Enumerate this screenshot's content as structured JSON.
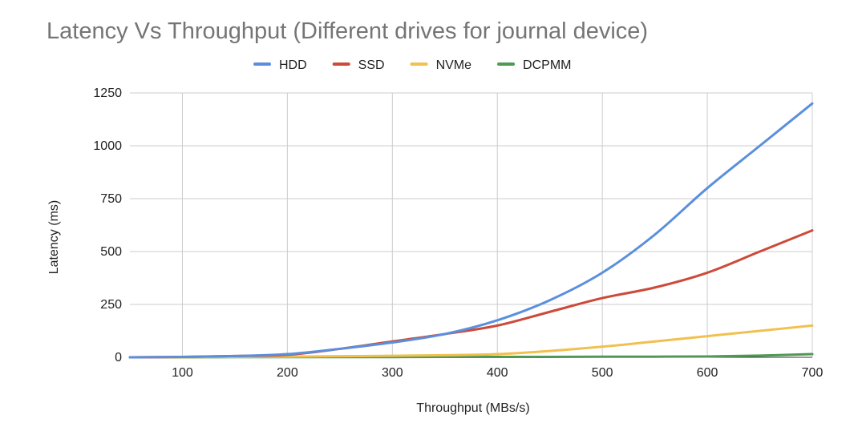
{
  "chart_data": {
    "type": "line",
    "title": "Latency Vs Throughput (Different drives for journal device)",
    "xlabel": "Throughput (MBs/s)",
    "ylabel": "Latency (ms)",
    "x": [
      50,
      100,
      150,
      200,
      250,
      300,
      350,
      400,
      450,
      500,
      550,
      600,
      650,
      700
    ],
    "xlim": [
      50,
      700
    ],
    "ylim": [
      0,
      1250
    ],
    "x_ticks": [
      100,
      200,
      300,
      400,
      500,
      600,
      700
    ],
    "y_ticks": [
      0,
      250,
      500,
      750,
      1000,
      1250
    ],
    "grid": true,
    "legend_position": "top",
    "series": [
      {
        "name": "HDD",
        "color": "#5B8FDD",
        "values": [
          0,
          2,
          6,
          15,
          40,
          70,
          110,
          175,
          270,
          400,
          580,
          800,
          1000,
          1200
        ]
      },
      {
        "name": "SSD",
        "color": "#CC4A39",
        "values": [
          0,
          2,
          6,
          12,
          40,
          75,
          110,
          150,
          215,
          280,
          330,
          400,
          500,
          600
        ]
      },
      {
        "name": "NVMe",
        "color": "#F1C04F",
        "values": [
          0,
          1,
          2,
          3,
          5,
          7,
          10,
          15,
          30,
          50,
          75,
          100,
          125,
          150
        ]
      },
      {
        "name": "DCPMM",
        "color": "#4E9A54",
        "values": [
          0,
          0,
          1,
          1,
          1,
          1,
          2,
          2,
          2,
          3,
          3,
          4,
          8,
          15
        ]
      }
    ]
  }
}
